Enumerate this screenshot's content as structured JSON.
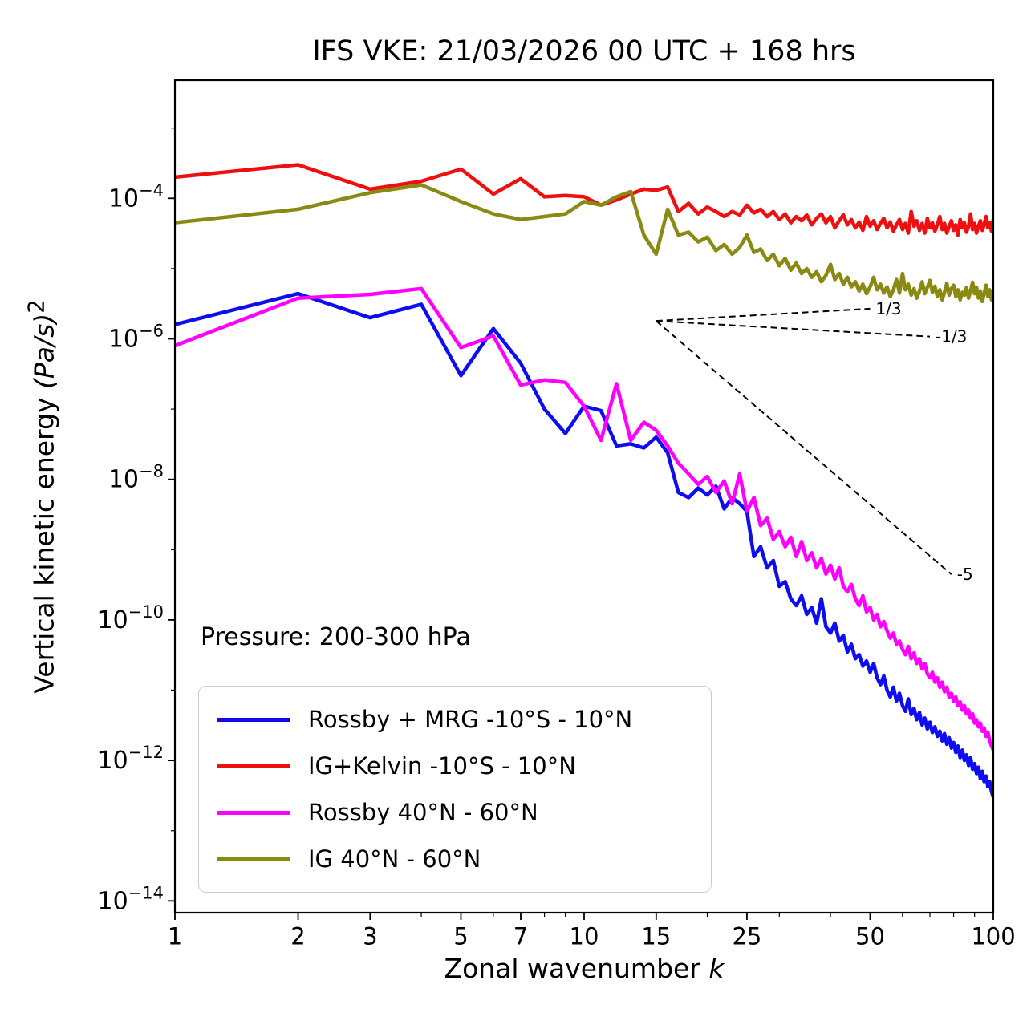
{
  "figure": {
    "title": "IFS VKE: 21/03/2026 00 UTC + 168 hrs",
    "xlabel_text": "Zonal wavenumber ",
    "xlabel_math": "k",
    "ylabel_text": "Vertical kinetic energy ",
    "ylabel_math": "(Pa/s)",
    "ylabel_sup": "2",
    "annotation": "Pressure: 200-300 hPa"
  },
  "chart_data": {
    "type": "line",
    "title": "IFS VKE: 21/03/2026 00 UTC + 168 hrs",
    "xlabel": "Zonal wavenumber k",
    "ylabel": "Vertical kinetic energy (Pa/s)^2",
    "x_scale": "log",
    "y_scale": "log",
    "xlim": [
      1,
      100
    ],
    "ylim": [
      6.8e-15,
      0.0048
    ],
    "x_ticks": [
      1,
      2,
      3,
      5,
      7,
      10,
      15,
      25,
      50,
      100
    ],
    "x_minor_ticks": [
      4,
      6,
      8,
      9,
      20,
      30,
      40,
      60,
      70,
      80,
      90
    ],
    "y_tick_exponents": [
      -4,
      -6,
      -8,
      -10,
      -12,
      -14
    ],
    "y_minor_exponents": [
      -3,
      -5,
      -7,
      -9,
      -11,
      -13
    ],
    "legend_position": "lower left",
    "grid": false,
    "x": [
      1,
      2,
      3,
      4,
      5,
      6,
      7,
      8,
      9,
      10,
      11,
      12,
      13,
      14,
      15,
      16,
      17,
      18,
      19,
      20,
      21,
      22,
      23,
      24,
      25,
      26,
      27,
      28,
      29,
      30,
      31,
      32,
      33,
      34,
      35,
      36,
      37,
      38,
      39,
      40,
      41,
      42,
      43,
      44,
      45,
      46,
      47,
      48,
      49,
      50,
      51,
      52,
      53,
      54,
      55,
      56,
      57,
      58,
      59,
      60,
      61,
      62,
      63,
      64,
      65,
      66,
      67,
      68,
      69,
      70,
      71,
      72,
      73,
      74,
      75,
      76,
      77,
      78,
      79,
      80,
      81,
      82,
      83,
      84,
      85,
      86,
      87,
      88,
      89,
      90,
      91,
      92,
      93,
      94,
      95,
      96,
      97,
      98,
      99,
      100
    ],
    "series": [
      {
        "name": "Rossby + MRG -10°S - 10°N",
        "color": "#0d0df0",
        "values": [
          1.6e-06,
          4.4e-06,
          2e-06,
          3.1e-06,
          3e-07,
          1.4e-06,
          4.5e-07,
          1e-07,
          4.5e-08,
          1.1e-07,
          9.5e-08,
          3e-08,
          3.2e-08,
          2.8e-08,
          4e-08,
          2.4e-08,
          6.5e-09,
          5.5e-09,
          7.5e-09,
          6e-09,
          8e-09,
          3.8e-09,
          5.5e-09,
          4.5e-09,
          3.5e-09,
          8e-10,
          1.1e-09,
          5.5e-10,
          7e-10,
          3e-10,
          3.5e-10,
          2e-10,
          1.6e-10,
          2.2e-10,
          1.2e-10,
          1.5e-10,
          9e-11,
          2e-10,
          8e-11,
          6.5e-11,
          9e-11,
          5e-11,
          6e-11,
          3.5e-11,
          4.5e-11,
          2.8e-11,
          3.2e-11,
          2.2e-11,
          2.6e-11,
          1.8e-11,
          2.4e-11,
          1.5e-11,
          1.2e-11,
          1.6e-11,
          1e-11,
          8e-12,
          1.1e-11,
          7e-12,
          9e-12,
          6e-12,
          5e-12,
          7.5e-12,
          4.5e-12,
          5.5e-12,
          3.8e-12,
          4.8e-12,
          3.2e-12,
          4e-12,
          2.8e-12,
          3.5e-12,
          2.5e-12,
          3e-12,
          2.2e-12,
          2.6e-12,
          1.9e-12,
          2.4e-12,
          1.7e-12,
          2.1e-12,
          1.5e-12,
          1.8e-12,
          1.3e-12,
          1.6e-12,
          1.1e-12,
          1.4e-12,
          1e-12,
          1.2e-12,
          8.5e-13,
          1.1e-12,
          7.5e-13,
          9e-13,
          6.5e-13,
          8e-13,
          5.5e-13,
          7e-13,
          5e-13,
          6e-13,
          4.2e-13,
          5e-13,
          3.6e-13,
          3e-13
        ]
      },
      {
        "name": "IG+Kelvin -10°S - 10°N",
        "color": "#ee1010",
        "values": [
          0.0002,
          0.0003,
          0.000135,
          0.000175,
          0.00026,
          0.000115,
          0.00019,
          0.000105,
          0.00011,
          0.000105,
          8e-05,
          9.5e-05,
          0.000115,
          0.000135,
          0.00013,
          0.000145,
          6.5e-05,
          8.5e-05,
          6e-05,
          7.5e-05,
          6.5e-05,
          5.5e-05,
          6.5e-05,
          5.8e-05,
          8e-05,
          6.2e-05,
          7e-05,
          5.5e-05,
          6.5e-05,
          5e-05,
          6e-05,
          4.5e-05,
          5.5e-05,
          4.8e-05,
          5.8e-05,
          4.2e-05,
          5.2e-05,
          6e-05,
          4.5e-05,
          5.5e-05,
          3.8e-05,
          4.8e-05,
          5.8e-05,
          4.2e-05,
          5e-05,
          3.8e-05,
          4.6e-05,
          3.5e-05,
          5.5e-05,
          4e-05,
          4.8e-05,
          3.6e-05,
          4.4e-05,
          5.2e-05,
          3.8e-05,
          4.6e-05,
          3.4e-05,
          4.2e-05,
          5e-05,
          3.6e-05,
          4.4e-05,
          3.2e-05,
          6.5e-05,
          4e-05,
          4.8e-05,
          3.5e-05,
          4.4e-05,
          3.2e-05,
          5.2e-05,
          3.8e-05,
          4.5e-05,
          3.4e-05,
          4.2e-05,
          5.5e-05,
          3.6e-05,
          4.4e-05,
          3.2e-05,
          4e-05,
          4.8e-05,
          3.5e-05,
          4.2e-05,
          3e-05,
          5e-05,
          3.8e-05,
          4.5e-05,
          3.3e-05,
          4e-05,
          6e-05,
          3.6e-05,
          4.4e-05,
          3.2e-05,
          4e-05,
          4.8e-05,
          3.5e-05,
          4.2e-05,
          5.5e-05,
          3.8e-05,
          4.5e-05,
          3.4e-05,
          5e-05
        ]
      },
      {
        "name": "Rossby 40°N - 60°N",
        "color": "#ff00ff",
        "values": [
          8e-07,
          3.8e-06,
          4.3e-06,
          5.2e-06,
          7.5e-07,
          1.1e-06,
          2.2e-07,
          2.6e-07,
          2.4e-07,
          1.1e-07,
          3.6e-08,
          2.3e-07,
          3.6e-08,
          6.5e-08,
          5e-08,
          3e-08,
          1.7e-08,
          1.2e-08,
          8.5e-09,
          1.1e-08,
          6.5e-09,
          9.5e-09,
          4.5e-09,
          1.2e-08,
          3.5e-09,
          5.5e-09,
          2.2e-09,
          2.8e-09,
          1.4e-09,
          1.8e-09,
          1.1e-09,
          1.5e-09,
          8e-10,
          1.3e-09,
          7e-10,
          9e-10,
          5.5e-10,
          7.5e-10,
          4.5e-10,
          6e-10,
          3.8e-10,
          5.5e-10,
          3e-10,
          2.5e-10,
          3.2e-10,
          2e-10,
          1.6e-10,
          2.2e-10,
          1.3e-10,
          1.5e-10,
          1e-10,
          1.2e-10,
          8e-11,
          9.5e-11,
          7e-11,
          5.5e-11,
          6.5e-11,
          4.5e-11,
          5e-11,
          3.8e-11,
          3.2e-11,
          4.2e-11,
          2.8e-11,
          3.4e-11,
          2.4e-11,
          2.8e-11,
          2e-11,
          2.4e-11,
          1.7e-11,
          1.5e-11,
          1.8e-11,
          1.3e-11,
          1.5e-11,
          1.1e-11,
          1.3e-11,
          9.5e-12,
          1.1e-11,
          8e-12,
          9e-12,
          7e-12,
          8e-12,
          6e-12,
          6.8e-12,
          5.2e-12,
          6e-12,
          4.6e-12,
          5.2e-12,
          4e-12,
          4.6e-12,
          3.4e-12,
          3.8e-12,
          3e-12,
          3.4e-12,
          2.6e-12,
          2.9e-12,
          2.2e-12,
          2.5e-12,
          1.9e-12,
          1.6e-12,
          1.4e-12
        ]
      },
      {
        "name": "IG 40°N - 60°N",
        "color": "#8a8a12",
        "values": [
          4.5e-05,
          7e-05,
          0.00012,
          0.000155,
          9e-05,
          6e-05,
          5e-05,
          5.5e-05,
          6e-05,
          9e-05,
          8e-05,
          0.000105,
          0.000125,
          3e-05,
          1.6e-05,
          7e-05,
          3e-05,
          3.3e-05,
          2.4e-05,
          2.8e-05,
          1.8e-05,
          2.2e-05,
          1.6e-05,
          2e-05,
          3e-05,
          1.7e-05,
          1.9e-05,
          1.3e-05,
          1.6e-05,
          1.1e-05,
          1.4e-05,
          9.5e-06,
          1.2e-05,
          8.5e-06,
          1e-05,
          7.5e-06,
          9e-06,
          6.5e-06,
          8e-06,
          1.15e-05,
          7e-06,
          8.5e-06,
          6e-06,
          7.5e-06,
          5.5e-06,
          6.5e-06,
          4.8e-06,
          6e-06,
          4.4e-06,
          5.5e-06,
          7.5e-06,
          5e-06,
          6e-06,
          4.5e-06,
          5.5e-06,
          4e-06,
          5e-06,
          7e-06,
          4.5e-06,
          8.5e-06,
          5e-06,
          6e-06,
          4.2e-06,
          5.2e-06,
          3.8e-06,
          4.8e-06,
          6.5e-06,
          4.4e-06,
          5.4e-06,
          6.8e-06,
          4.6e-06,
          5.6e-06,
          4e-06,
          5e-06,
          3.6e-06,
          4.6e-06,
          6.2e-06,
          4.2e-06,
          5.2e-06,
          5.8e-06,
          4e-06,
          5e-06,
          3.6e-06,
          4.6e-06,
          4.2e-06,
          5.4e-06,
          3.8e-06,
          4.8e-06,
          6.4e-06,
          4.4e-06,
          5.4e-06,
          3.8e-06,
          4.8e-06,
          3.4e-06,
          4.4e-06,
          5.8e-06,
          4e-06,
          5e-06,
          3.6e-06,
          4.8e-06
        ]
      }
    ],
    "reference_lines": [
      {
        "label": "1/3",
        "slope": 0.3333,
        "x_start": 15,
        "x_end": 50,
        "y_start": 1.8e-06
      },
      {
        "label": "-1/3",
        "slope": -0.3333,
        "x_start": 15,
        "x_end": 70,
        "y_start": 1.8e-06
      },
      {
        "label": "-5",
        "slope": -5,
        "x_start": 15,
        "x_end": 79,
        "y_start": 1.8e-06
      }
    ]
  }
}
